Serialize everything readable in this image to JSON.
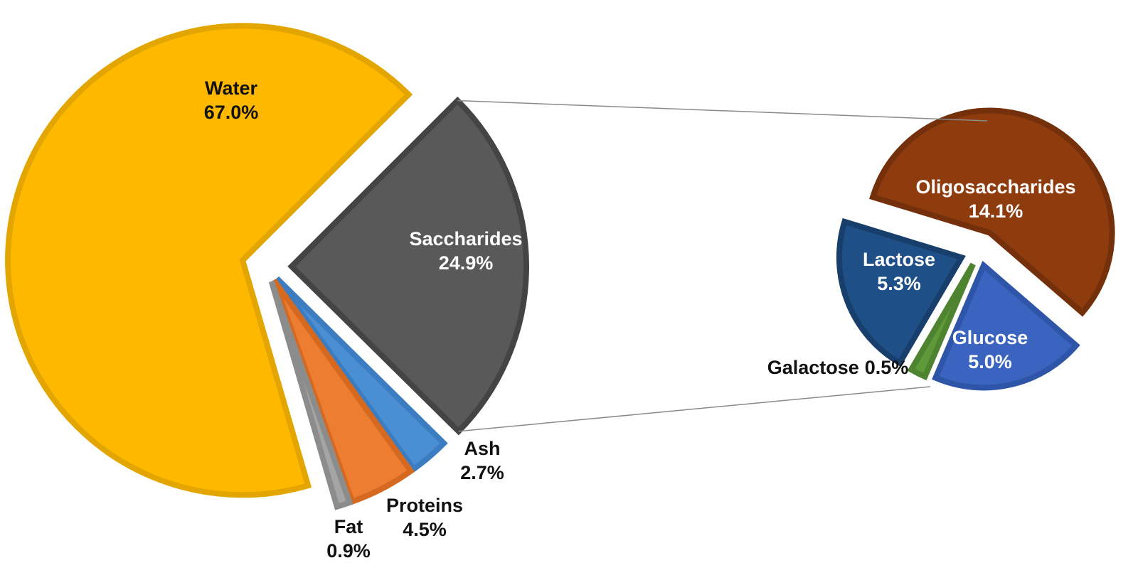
{
  "chart_data": [
    {
      "type": "pie",
      "categories": [
        "Water",
        "Saccharides",
        "Ash",
        "Proteins",
        "Fat"
      ],
      "values": [
        67.0,
        24.9,
        2.7,
        4.5,
        0.9
      ],
      "value_labels": [
        "67.0%",
        "24.9%",
        "2.7%",
        "4.5%",
        "0.9%"
      ],
      "colors": [
        "#FFB800",
        "#595959",
        "#4A8FD4",
        "#ED7D31",
        "#A5A5A5"
      ],
      "edge_colors": [
        "#E3A600",
        "#444444",
        "#3B7DC0",
        "#D5691F",
        "#8C8C8C"
      ]
    },
    {
      "type": "pie",
      "categories": [
        "Oligosaccharides",
        "Glucose",
        "Galactose",
        "Lactose"
      ],
      "values": [
        14.1,
        5.0,
        0.5,
        5.3
      ],
      "value_labels": [
        "14.1%",
        "5.0%",
        "0.5%",
        "5.3%"
      ],
      "colors": [
        "#8E3B0E",
        "#3A64C0",
        "#5E9A3A",
        "#1E4F86"
      ],
      "edge_colors": [
        "#73300B",
        "#2F55A8",
        "#4E8430",
        "#183F6C"
      ]
    }
  ]
}
